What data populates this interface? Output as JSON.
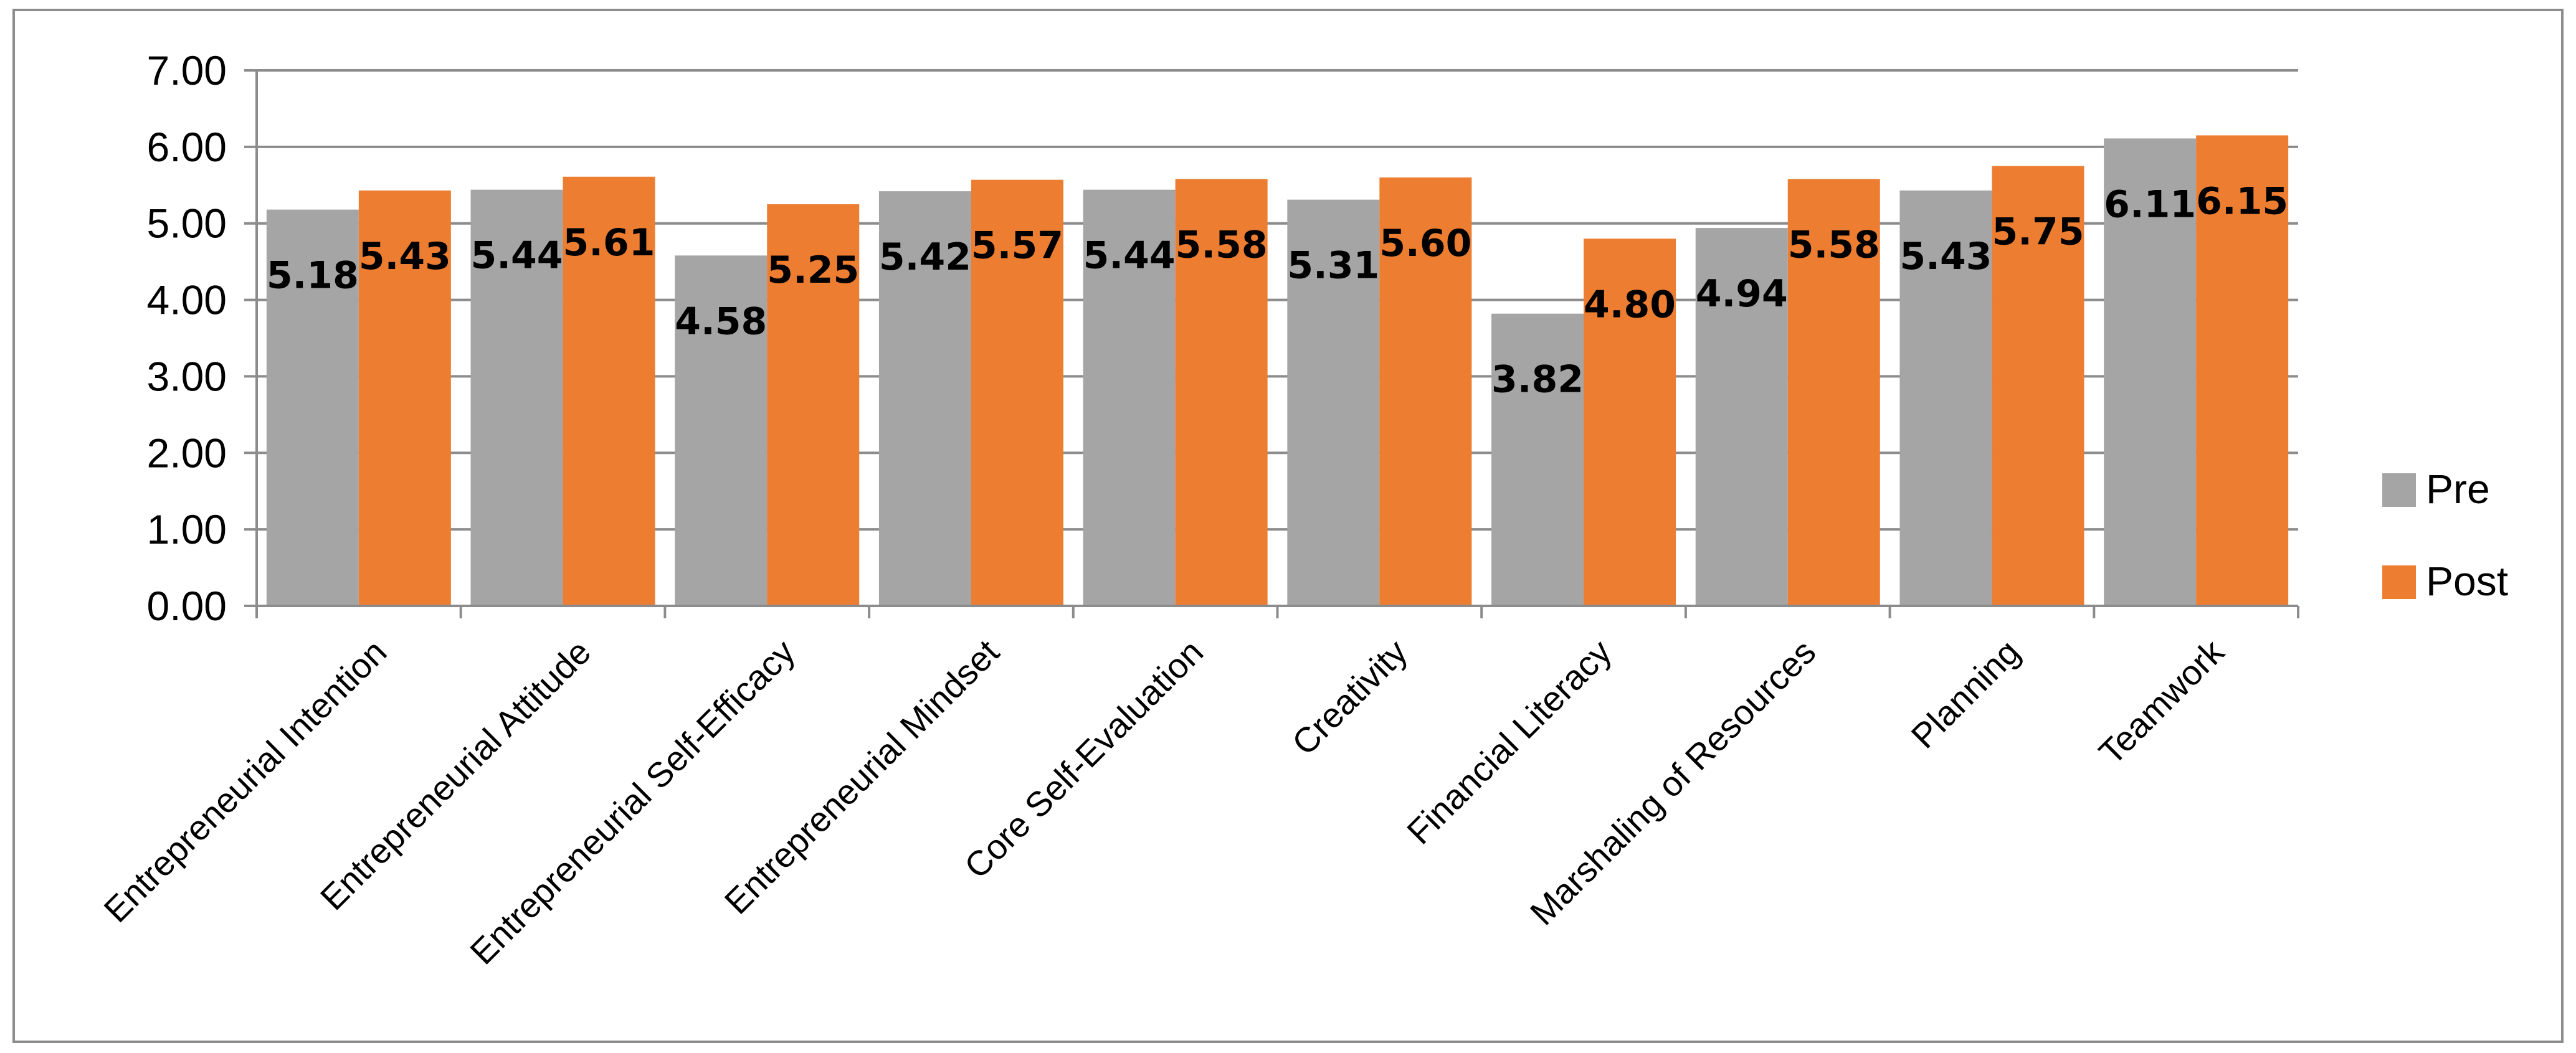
{
  "chart_data": {
    "type": "bar",
    "categories": [
      "Entrepreneurial Intention",
      "Entrepreneurial Attitude",
      "Entrepreneurial Self-Efficacy",
      "Entrepreneurial Mindset",
      "Core Self-Evaluation",
      "Creativity",
      "Financial Literacy",
      "Marshaling of Resources",
      "Planning",
      "Teamwork"
    ],
    "series": [
      {
        "name": "Pre",
        "color": "#a5a5a5",
        "values": [
          5.18,
          5.44,
          4.58,
          5.42,
          5.44,
          5.31,
          3.82,
          4.94,
          5.43,
          6.11
        ],
        "labels": [
          "5.18",
          "5.44",
          "4.58",
          "5.42",
          "5.44",
          "5.31",
          "3.82",
          "4.94",
          "5.43",
          "6.11"
        ]
      },
      {
        "name": "Post",
        "color": "#ed7d31",
        "values": [
          5.43,
          5.61,
          5.25,
          5.57,
          5.58,
          5.6,
          4.8,
          5.58,
          5.75,
          6.15
        ],
        "labels": [
          "5.43",
          "5.61",
          "5.25",
          "5.57",
          "5.58",
          "5.60",
          "4.80",
          "5.58",
          "5.75",
          "6.15"
        ]
      }
    ],
    "ylim": [
      0,
      7
    ],
    "yticks": [
      "0.00",
      "1.00",
      "2.00",
      "3.00",
      "4.00",
      "5.00",
      "6.00",
      "7.00"
    ],
    "grid": true,
    "legend": "right",
    "title": "",
    "xlabel": "",
    "ylabel": ""
  }
}
